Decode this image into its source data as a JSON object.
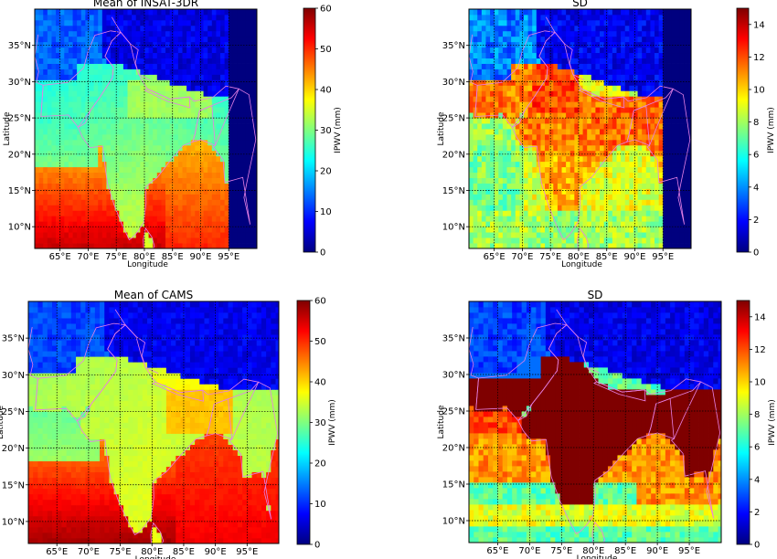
{
  "figure": {
    "colormap": [
      "#00007f",
      "#0000ff",
      "#007fff",
      "#00ffff",
      "#7fff7f",
      "#ffff00",
      "#ff7f00",
      "#ff0000",
      "#7f0000"
    ],
    "outline_color": "#e680e6"
  },
  "chart_data": [
    {
      "type": "heatmap",
      "title": "Mean of INSAT-3DR",
      "field": "mean_insat",
      "xlabel": "Longitude",
      "ylabel": "Latitude",
      "xlim": [
        60.5,
        100
      ],
      "ylim": [
        7,
        40
      ],
      "x_ticks": [
        65,
        70,
        75,
        80,
        85,
        90,
        95
      ],
      "x_tick_labels": [
        "65°E",
        "70°E",
        "75°E",
        "80°E",
        "85°E",
        "90°E",
        "95°E"
      ],
      "y_ticks": [
        10,
        15,
        20,
        25,
        30,
        35
      ],
      "y_tick_labels": [
        "10°N",
        "15°N",
        "20°N",
        "25°N",
        "30°N",
        "35°N"
      ],
      "grid": true,
      "colorbar": {
        "label": "IPWV (mm)",
        "range": [
          0,
          60
        ],
        "ticks": [
          0,
          10,
          20,
          30,
          40,
          50,
          60
        ],
        "tick_labels": [
          "0",
          "10",
          "20",
          "30",
          "40",
          "50",
          "60"
        ]
      },
      "approx_values": {
        "tibetan_plateau": 3,
        "northwest_highlands": 12,
        "indo_gangetic_plain": 30,
        "central_peninsula": 22,
        "bay_of_bengal": 50,
        "arabian_sea_south": 46,
        "masked_east_of": 95
      }
    },
    {
      "type": "heatmap",
      "title": "SD",
      "field": "sd_insat",
      "xlabel": "Longitude",
      "ylabel": "Latitude",
      "xlim": [
        60.5,
        100
      ],
      "ylim": [
        7,
        40
      ],
      "x_ticks": [
        65,
        70,
        75,
        80,
        85,
        90,
        95
      ],
      "x_tick_labels": [
        "65°E",
        "70°E",
        "75°E",
        "80°E",
        "85°E",
        "90°E",
        "95°E"
      ],
      "y_ticks": [
        10,
        15,
        20,
        25,
        30,
        35
      ],
      "y_tick_labels": [
        "10°N",
        "15°N",
        "20°N",
        "25°N",
        "30°N",
        "35°N"
      ],
      "grid": true,
      "colorbar": {
        "label": "IPWV (mm)",
        "range": [
          0,
          15
        ],
        "ticks": [
          0,
          2,
          4,
          6,
          8,
          10,
          12,
          14
        ],
        "tick_labels": [
          "0",
          "2",
          "4",
          "6",
          "8",
          "10",
          "12",
          "14"
        ]
      },
      "approx_values": {
        "tibetan_plateau": 1,
        "himalayan_foothills": 12,
        "indo_gangetic_plain": 11.5,
        "peninsula": 10.5,
        "northern_arabian_sea": 8,
        "southern_arabian_sea": 7,
        "masked_east_of": 95
      }
    },
    {
      "type": "heatmap",
      "title": "Mean of CAMS",
      "field": "mean_cams",
      "xlabel": "Longitude",
      "ylabel": "Latitude",
      "xlim": [
        60.5,
        100
      ],
      "ylim": [
        7,
        40
      ],
      "x_ticks": [
        65,
        70,
        75,
        80,
        85,
        90,
        95
      ],
      "x_tick_labels": [
        "65°E",
        "70°E",
        "75°E",
        "80°E",
        "85°E",
        "90°E",
        "95°E"
      ],
      "y_ticks": [
        10,
        15,
        20,
        25,
        30,
        35
      ],
      "y_tick_labels": [
        "10°N",
        "15°N",
        "20°N",
        "25°N",
        "30°N",
        "35°N"
      ],
      "grid": true,
      "colorbar": {
        "label": "IPWV (mm)",
        "range": [
          0,
          60
        ],
        "ticks": [
          0,
          10,
          20,
          30,
          40,
          50,
          60
        ],
        "tick_labels": [
          "0",
          "10",
          "20",
          "30",
          "40",
          "50",
          "60"
        ]
      },
      "approx_values": {
        "tibetan_plateau": 4,
        "northwest_highlands": 10,
        "indo_gangetic_plain": 38,
        "central_peninsula": 30,
        "bay_of_bengal": 55,
        "arabian_sea_south": 47
      }
    },
    {
      "type": "heatmap",
      "title": "SD",
      "field": "sd_cams",
      "xlabel": "Longitude",
      "ylabel": "Latitude",
      "xlim": [
        60.5,
        100
      ],
      "ylim": [
        7,
        40
      ],
      "x_ticks": [
        65,
        70,
        75,
        80,
        85,
        90,
        95
      ],
      "x_tick_labels": [
        "65°E",
        "70°E",
        "75°E",
        "80°E",
        "85°E",
        "90°E",
        "95°E"
      ],
      "y_ticks": [
        10,
        15,
        20,
        25,
        30,
        35
      ],
      "y_tick_labels": [
        "10°N",
        "15°N",
        "20°N",
        "25°N",
        "30°N",
        "35°N"
      ],
      "grid": true,
      "colorbar": {
        "label": "IPWV (mm)",
        "range": [
          0,
          15
        ],
        "ticks": [
          0,
          2,
          4,
          6,
          8,
          10,
          12,
          14
        ],
        "tick_labels": [
          "0",
          "2",
          "4",
          "6",
          "8",
          "10",
          "12",
          "14"
        ]
      },
      "approx_values": {
        "tibetan_plateau": 1.5,
        "indian_landmass": 15,
        "coastal_fringe": 11,
        "southern_seas": 7
      }
    }
  ]
}
